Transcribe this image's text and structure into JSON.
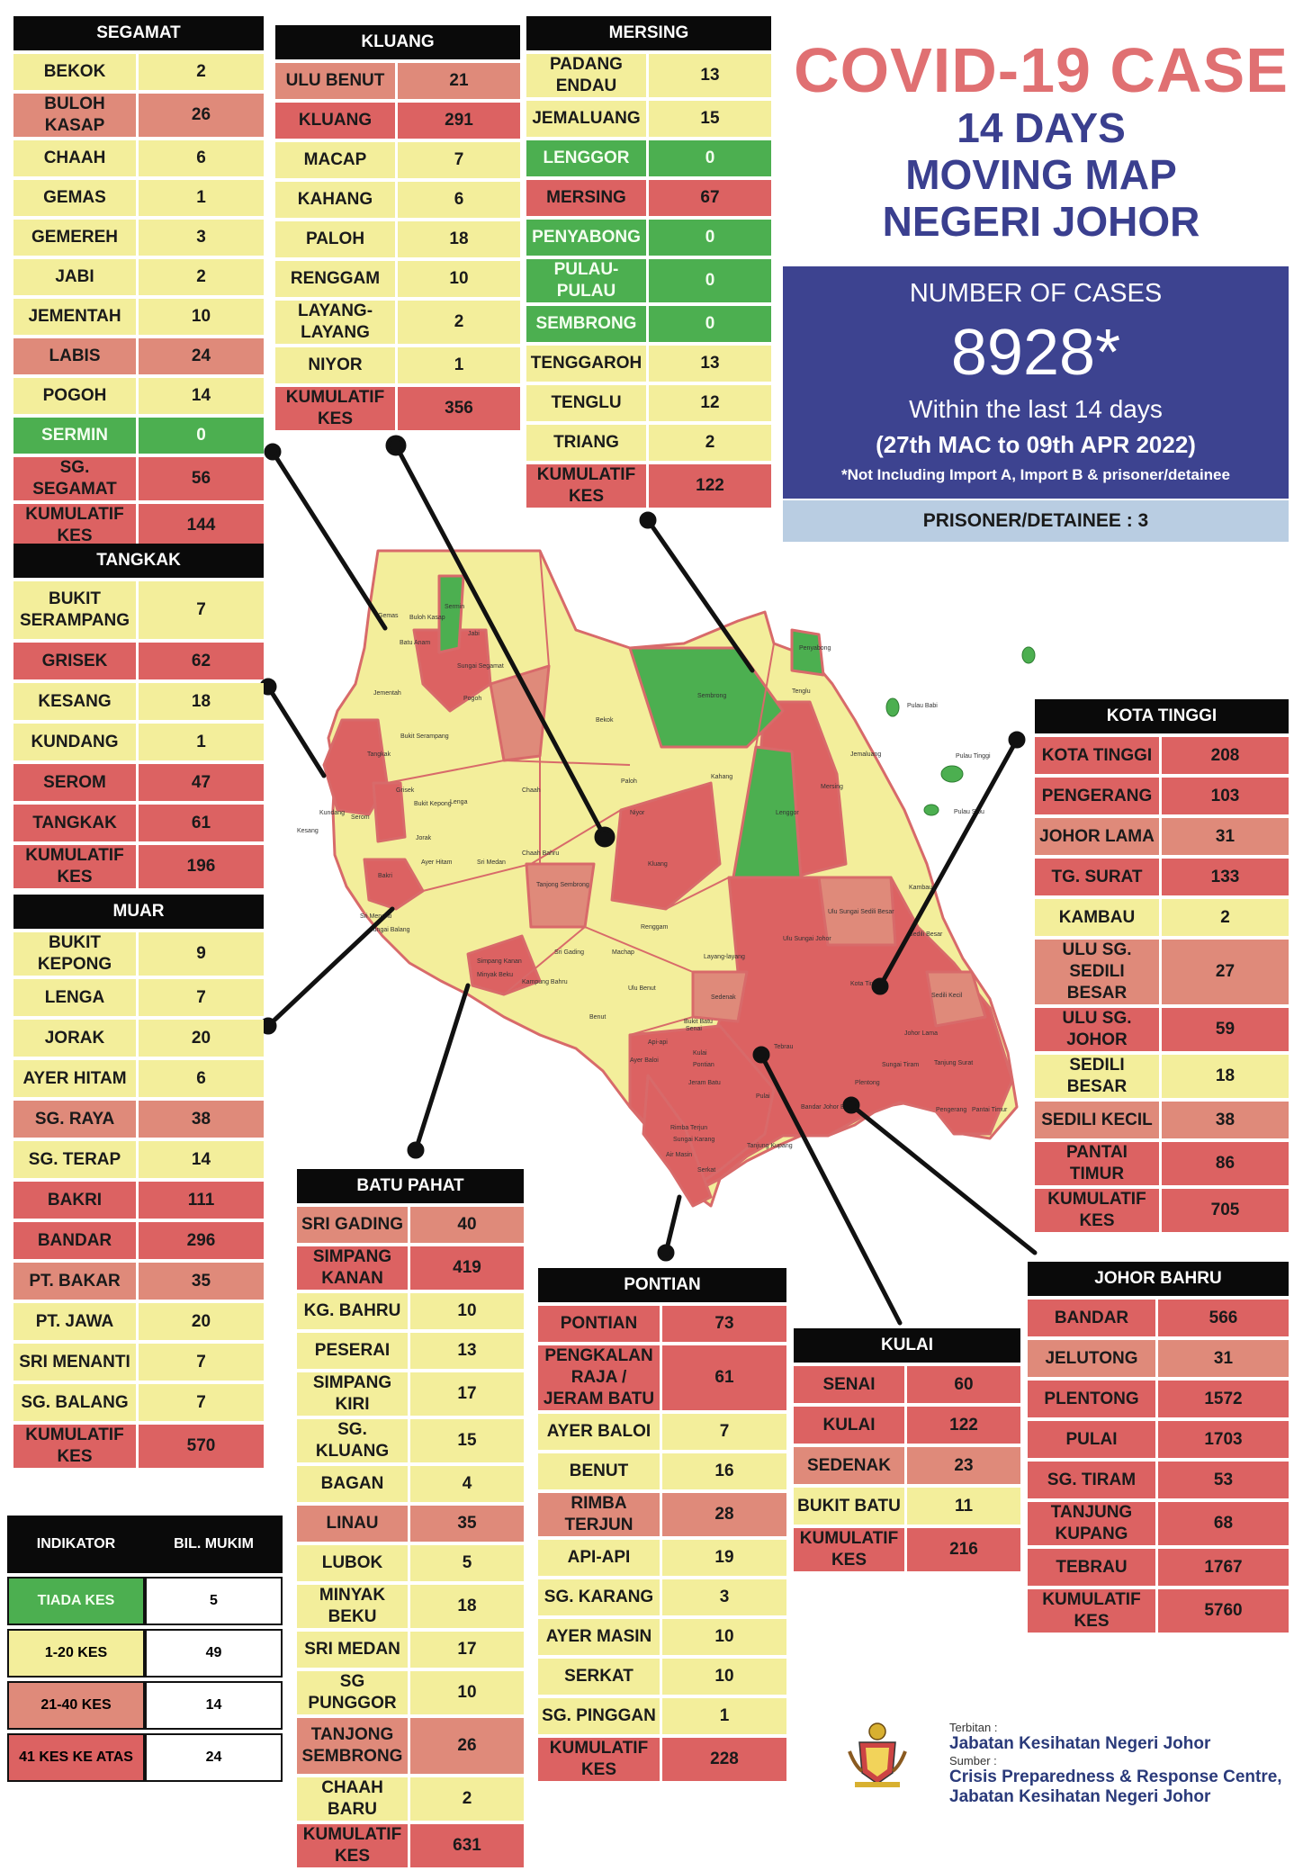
{
  "title": {
    "line1": "COVID-19 CASE",
    "line2": "14 DAYS",
    "line3": "MOVING MAP",
    "line4": "NEGERI JOHOR"
  },
  "summary": {
    "label": "NUMBER OF CASES",
    "total": "8928*",
    "period": "Within the last 14 days",
    "date_range": "(27th MAC to 09th APR 2022)",
    "note": "*Not Including Import A, Import B & prisoner/detainee",
    "prisoner": "PRISONER/DETAINEE : 3"
  },
  "colors": {
    "green": "#4caf50",
    "yellow": "#f3ee9b",
    "salmon": "#df8a7a",
    "red": "#dc6262",
    "summary_bg": "#3d4390",
    "title": "#e07072"
  },
  "districts": {
    "segamat": {
      "name": "SEGAMAT",
      "rows": [
        {
          "label": "BEKOK",
          "value": "2",
          "c": "yellow"
        },
        {
          "label": "BULOH KASAP",
          "value": "26",
          "c": "salmon"
        },
        {
          "label": "CHAAH",
          "value": "6",
          "c": "yellow"
        },
        {
          "label": "GEMAS",
          "value": "1",
          "c": "yellow"
        },
        {
          "label": "GEMEREH",
          "value": "3",
          "c": "yellow"
        },
        {
          "label": "JABI",
          "value": "2",
          "c": "yellow"
        },
        {
          "label": "JEMENTAH",
          "value": "10",
          "c": "yellow"
        },
        {
          "label": "LABIS",
          "value": "24",
          "c": "salmon"
        },
        {
          "label": "POGOH",
          "value": "14",
          "c": "yellow"
        },
        {
          "label": "SERMIN",
          "value": "0",
          "c": "green"
        },
        {
          "label": "SG. SEGAMAT",
          "value": "56",
          "c": "red"
        },
        {
          "label": "KUMULATIF KES",
          "value": "144",
          "c": "red"
        }
      ]
    },
    "kluang": {
      "name": "KLUANG",
      "rows": [
        {
          "label": "ULU BENUT",
          "value": "21",
          "c": "salmon"
        },
        {
          "label": "KLUANG",
          "value": "291",
          "c": "red"
        },
        {
          "label": "MACAP",
          "value": "7",
          "c": "yellow"
        },
        {
          "label": "KAHANG",
          "value": "6",
          "c": "yellow"
        },
        {
          "label": "PALOH",
          "value": "18",
          "c": "yellow"
        },
        {
          "label": "RENGGAM",
          "value": "10",
          "c": "yellow"
        },
        {
          "label": "LAYANG-LAYANG",
          "value": "2",
          "c": "yellow"
        },
        {
          "label": "NIYOR",
          "value": "1",
          "c": "yellow"
        },
        {
          "label": "KUMULATIF KES",
          "value": "356",
          "c": "red"
        }
      ]
    },
    "mersing": {
      "name": "MERSING",
      "rows": [
        {
          "label": "PADANG ENDAU",
          "value": "13",
          "c": "yellow"
        },
        {
          "label": "JEMALUANG",
          "value": "15",
          "c": "yellow"
        },
        {
          "label": "LENGGOR",
          "value": "0",
          "c": "green"
        },
        {
          "label": "MERSING",
          "value": "67",
          "c": "red"
        },
        {
          "label": "PENYABONG",
          "value": "0",
          "c": "green"
        },
        {
          "label": "PULAU-PULAU",
          "value": "0",
          "c": "green"
        },
        {
          "label": "SEMBRONG",
          "value": "0",
          "c": "green"
        },
        {
          "label": "TENGGAROH",
          "value": "13",
          "c": "yellow"
        },
        {
          "label": "TENGLU",
          "value": "12",
          "c": "yellow"
        },
        {
          "label": "TRIANG",
          "value": "2",
          "c": "yellow"
        },
        {
          "label": "KUMULATIF KES",
          "value": "122",
          "c": "red"
        }
      ]
    },
    "tangkak": {
      "name": "TANGKAK",
      "rows": [
        {
          "label": "BUKIT SERAMPANG",
          "value": "7",
          "c": "yellow"
        },
        {
          "label": "GRISEK",
          "value": "62",
          "c": "red"
        },
        {
          "label": "KESANG",
          "value": "18",
          "c": "yellow"
        },
        {
          "label": "KUNDANG",
          "value": "1",
          "c": "yellow"
        },
        {
          "label": "SEROM",
          "value": "47",
          "c": "red"
        },
        {
          "label": "TANGKAK",
          "value": "61",
          "c": "red"
        },
        {
          "label": "KUMULATIF KES",
          "value": "196",
          "c": "red"
        }
      ]
    },
    "muar": {
      "name": "MUAR",
      "rows": [
        {
          "label": "BUKIT KEPONG",
          "value": "9",
          "c": "yellow"
        },
        {
          "label": "LENGA",
          "value": "7",
          "c": "yellow"
        },
        {
          "label": "JORAK",
          "value": "20",
          "c": "yellow"
        },
        {
          "label": "AYER HITAM",
          "value": "6",
          "c": "yellow"
        },
        {
          "label": "SG. RAYA",
          "value": "38",
          "c": "salmon"
        },
        {
          "label": "SG. TERAP",
          "value": "14",
          "c": "yellow"
        },
        {
          "label": "BAKRI",
          "value": "111",
          "c": "red"
        },
        {
          "label": "BANDAR",
          "value": "296",
          "c": "red"
        },
        {
          "label": "PT. BAKAR",
          "value": "35",
          "c": "salmon"
        },
        {
          "label": "PT. JAWA",
          "value": "20",
          "c": "yellow"
        },
        {
          "label": "SRI MENANTI",
          "value": "7",
          "c": "yellow"
        },
        {
          "label": "SG. BALANG",
          "value": "7",
          "c": "yellow"
        },
        {
          "label": "KUMULATIF KES",
          "value": "570",
          "c": "red"
        }
      ]
    },
    "batu_pahat": {
      "name": "BATU PAHAT",
      "rows": [
        {
          "label": "SRI GADING",
          "value": "40",
          "c": "salmon"
        },
        {
          "label": "SIMPANG KANAN",
          "value": "419",
          "c": "red"
        },
        {
          "label": "KG. BAHRU",
          "value": "10",
          "c": "yellow"
        },
        {
          "label": "PESERAI",
          "value": "13",
          "c": "yellow"
        },
        {
          "label": "SIMPANG KIRI",
          "value": "17",
          "c": "yellow"
        },
        {
          "label": "SG. KLUANG",
          "value": "15",
          "c": "yellow"
        },
        {
          "label": "BAGAN",
          "value": "4",
          "c": "yellow"
        },
        {
          "label": "LINAU",
          "value": "35",
          "c": "salmon"
        },
        {
          "label": "LUBOK",
          "value": "5",
          "c": "yellow"
        },
        {
          "label": "MINYAK BEKU",
          "value": "18",
          "c": "yellow"
        },
        {
          "label": "SRI MEDAN",
          "value": "17",
          "c": "yellow"
        },
        {
          "label": "SG PUNGGOR",
          "value": "10",
          "c": "yellow"
        },
        {
          "label": "TANJONG SEMBRONG",
          "value": "26",
          "c": "salmon"
        },
        {
          "label": "CHAAH BARU",
          "value": "2",
          "c": "yellow"
        },
        {
          "label": "KUMULATIF KES",
          "value": "631",
          "c": "red"
        }
      ]
    },
    "pontian": {
      "name": "PONTIAN",
      "rows": [
        {
          "label": "PONTIAN",
          "value": "73",
          "c": "red"
        },
        {
          "label": "PENGKALAN RAJA / JERAM BATU",
          "value": "61",
          "c": "red"
        },
        {
          "label": "AYER BALOI",
          "value": "7",
          "c": "yellow"
        },
        {
          "label": "BENUT",
          "value": "16",
          "c": "yellow"
        },
        {
          "label": "RIMBA TERJUN",
          "value": "28",
          "c": "salmon"
        },
        {
          "label": "API-API",
          "value": "19",
          "c": "yellow"
        },
        {
          "label": "SG. KARANG",
          "value": "3",
          "c": "yellow"
        },
        {
          "label": "AYER MASIN",
          "value": "10",
          "c": "yellow"
        },
        {
          "label": "SERKAT",
          "value": "10",
          "c": "yellow"
        },
        {
          "label": "SG. PINGGAN",
          "value": "1",
          "c": "yellow"
        },
        {
          "label": "KUMULATIF KES",
          "value": "228",
          "c": "red"
        }
      ]
    },
    "kulai": {
      "name": "KULAI",
      "rows": [
        {
          "label": "SENAI",
          "value": "60",
          "c": "red"
        },
        {
          "label": "KULAI",
          "value": "122",
          "c": "red"
        },
        {
          "label": "SEDENAK",
          "value": "23",
          "c": "salmon"
        },
        {
          "label": "BUKIT BATU",
          "value": "11",
          "c": "yellow"
        },
        {
          "label": "KUMULATIF KES",
          "value": "216",
          "c": "red"
        }
      ]
    },
    "kota_tinggi": {
      "name": "KOTA TINGGI",
      "rows": [
        {
          "label": "KOTA TINGGI",
          "value": "208",
          "c": "red"
        },
        {
          "label": "PENGERANG",
          "value": "103",
          "c": "red"
        },
        {
          "label": "JOHOR LAMA",
          "value": "31",
          "c": "salmon"
        },
        {
          "label": "TG. SURAT",
          "value": "133",
          "c": "red"
        },
        {
          "label": "KAMBAU",
          "value": "2",
          "c": "yellow"
        },
        {
          "label": "ULU SG. SEDILI BESAR",
          "value": "27",
          "c": "salmon"
        },
        {
          "label": "ULU SG. JOHOR",
          "value": "59",
          "c": "red"
        },
        {
          "label": "SEDILI BESAR",
          "value": "18",
          "c": "yellow"
        },
        {
          "label": "SEDILI KECIL",
          "value": "38",
          "c": "salmon"
        },
        {
          "label": "PANTAI TIMUR",
          "value": "86",
          "c": "red"
        },
        {
          "label": "KUMULATIF KES",
          "value": "705",
          "c": "red"
        }
      ]
    },
    "johor_bahru": {
      "name": "JOHOR BAHRU",
      "rows": [
        {
          "label": "BANDAR",
          "value": "566",
          "c": "red"
        },
        {
          "label": "JELUTONG",
          "value": "31",
          "c": "salmon"
        },
        {
          "label": "PLENTONG",
          "value": "1572",
          "c": "red"
        },
        {
          "label": "PULAI",
          "value": "1703",
          "c": "red"
        },
        {
          "label": "SG. TIRAM",
          "value": "53",
          "c": "red"
        },
        {
          "label": "TANJUNG KUPANG",
          "value": "68",
          "c": "red"
        },
        {
          "label": "TEBRAU",
          "value": "1767",
          "c": "red"
        },
        {
          "label": "KUMULATIF KES",
          "value": "5760",
          "c": "red"
        }
      ]
    }
  },
  "legend": {
    "col1": "INDIKATOR",
    "col2": "BIL. MUKIM",
    "rows": [
      {
        "label": "TIADA KES",
        "value": "5",
        "c": "green"
      },
      {
        "label": "1-20 KES",
        "value": "49",
        "c": "yellow"
      },
      {
        "label": "21-40 KES",
        "value": "14",
        "c": "salmon"
      },
      {
        "label": "41 KES KE ATAS",
        "value": "24",
        "c": "red"
      }
    ]
  },
  "footer": {
    "published_label": "Terbitan :",
    "publisher": "Jabatan Kesihatan Negeri Johor",
    "source_label": "Sumber :",
    "source1": "Crisis Preparedness & Response Centre,",
    "source2": "Jabatan Kesihatan Negeri Johor"
  },
  "map_labels": [
    "Gemas",
    "Buloh Kasap",
    "Batu Anam",
    "Sermin",
    "Jabi",
    "Sungai Segamat",
    "Jementah",
    "Pogoh",
    "Bukit Serampang",
    "Tangkak",
    "Grisek",
    "Bukit Kepong",
    "Lenga",
    "Chaah",
    "Bekok",
    "Sembrong",
    "Penyabong",
    "Tenglu",
    "Jemaluang",
    "Mersing",
    "Lenggor",
    "Paloh",
    "Niyor",
    "Kahang",
    "Kluang",
    "Renggam",
    "Jorak",
    "Ayer Hitam",
    "Sri Medan",
    "Chaah Bahru",
    "Tanjong Sembrong",
    "Kundang",
    "Serom",
    "Kesang",
    "Bakri",
    "Sri Menanti",
    "Sungai Balang",
    "Sri Gading",
    "Simpang Kanan",
    "Minyak Beku",
    "Kampung Bahru",
    "Machap",
    "Ulu Benut",
    "Layang-layang",
    "Sedenak",
    "Senai",
    "Kulai",
    "Bukit Batu",
    "Ulu Sungai Johor",
    "Ulu Sungai Sedili Besar",
    "Sedili Besar",
    "Kota Tinggi",
    "Sedili Kecil",
    "Johor Lama",
    "Tanjung Surat",
    "Pengerang",
    "Pantai Timur",
    "Tebrau",
    "Sungai Tiram",
    "Plentong",
    "Pulai",
    "Bandar Johor Bahru",
    "Tanjung Kupang",
    "Jeram Batu",
    "Pontian",
    "Rimba Terjun",
    "Serkat",
    "Kambau",
    "Pulau Babi",
    "Pulau Tinggi",
    "Pulau Sibu",
    "Benut",
    "Api-api",
    "Ayer Baloi",
    "Sungai Karang",
    "Air Masin"
  ]
}
